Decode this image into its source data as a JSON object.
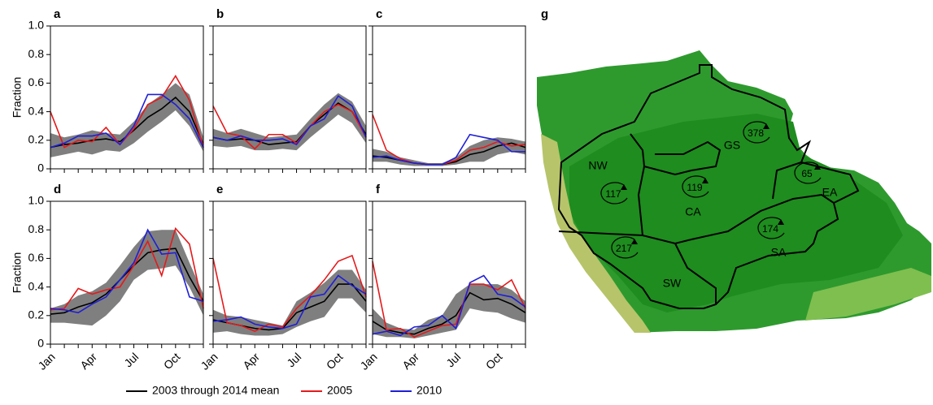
{
  "chart_data": [
    {
      "type": "line",
      "title": "a",
      "ylabel": "Fraction",
      "show_ytick_labels": true,
      "show_xtick_labels": false,
      "categories": [
        "Jan",
        null,
        null,
        "Apr",
        null,
        null,
        "Jul",
        null,
        null,
        "Oct",
        null,
        null
      ],
      "ylim": [
        0,
        1
      ],
      "yticks": [
        0,
        0.2,
        0.4,
        0.6,
        0.8,
        {
          "value": 1,
          "label": "1.0"
        }
      ],
      "band": {
        "color": "#7f7f7f",
        "low": [
          0.08,
          0.1,
          0.12,
          0.1,
          0.13,
          0.12,
          0.18,
          0.26,
          0.33,
          0.41,
          0.3,
          0.12
        ],
        "high": [
          0.25,
          0.22,
          0.24,
          0.27,
          0.25,
          0.24,
          0.33,
          0.45,
          0.52,
          0.6,
          0.52,
          0.22
        ]
      },
      "series": [
        {
          "values": [
            0.15,
            0.17,
            0.18,
            0.2,
            0.21,
            0.19,
            0.27,
            0.36,
            0.42,
            0.5,
            0.4,
            0.17
          ]
        },
        {
          "values": [
            0.4,
            0.15,
            0.2,
            0.19,
            0.29,
            0.17,
            0.28,
            0.45,
            0.5,
            0.65,
            0.48,
            0.15
          ]
        },
        {
          "values": [
            0.15,
            0.18,
            0.23,
            0.23,
            0.25,
            0.17,
            0.3,
            0.52,
            0.52,
            0.45,
            0.35,
            0.15
          ]
        }
      ]
    },
    {
      "type": "line",
      "title": "b",
      "show_ytick_labels": false,
      "show_xtick_labels": false,
      "categories": [
        "Jan",
        null,
        null,
        "Apr",
        null,
        null,
        "Jul",
        null,
        null,
        "Oct",
        null,
        null
      ],
      "ylim": [
        0,
        1
      ],
      "yticks": [
        0,
        0.2,
        0.4,
        0.6,
        0.8,
        1
      ],
      "band": {
        "color": "#7f7f7f",
        "low": [
          0.16,
          0.15,
          0.16,
          0.13,
          0.13,
          0.14,
          0.13,
          0.22,
          0.3,
          0.38,
          0.32,
          0.18
        ],
        "high": [
          0.28,
          0.25,
          0.28,
          0.25,
          0.22,
          0.23,
          0.24,
          0.35,
          0.45,
          0.53,
          0.47,
          0.3
        ]
      },
      "series": [
        {
          "values": [
            0.22,
            0.2,
            0.21,
            0.2,
            0.17,
            0.18,
            0.19,
            0.3,
            0.38,
            0.46,
            0.4,
            0.24
          ]
        },
        {
          "values": [
            0.44,
            0.25,
            0.23,
            0.14,
            0.24,
            0.24,
            0.18,
            0.3,
            0.4,
            0.45,
            0.4,
            0.22
          ]
        },
        {
          "values": [
            0.22,
            0.2,
            0.23,
            0.2,
            0.2,
            0.21,
            0.17,
            0.3,
            0.35,
            0.51,
            0.44,
            0.22
          ]
        }
      ]
    },
    {
      "type": "line",
      "title": "c",
      "show_ytick_labels": false,
      "show_xtick_labels": false,
      "categories": [
        "Jan",
        null,
        null,
        "Apr",
        null,
        null,
        "Jul",
        null,
        null,
        "Oct",
        null,
        null
      ],
      "ylim": [
        0,
        1
      ],
      "yticks": [
        0,
        0.2,
        0.4,
        0.6,
        0.8,
        1
      ],
      "band": {
        "color": "#7f7f7f",
        "low": [
          0.05,
          0.05,
          0.03,
          0.02,
          0.02,
          0.02,
          0.03,
          0.05,
          0.05,
          0.1,
          0.12,
          0.1
        ],
        "high": [
          0.14,
          0.12,
          0.08,
          0.06,
          0.04,
          0.04,
          0.08,
          0.16,
          0.2,
          0.22,
          0.21,
          0.19
        ]
      },
      "series": [
        {
          "values": [
            0.09,
            0.08,
            0.06,
            0.04,
            0.03,
            0.03,
            0.05,
            0.1,
            0.12,
            0.16,
            0.18,
            0.15
          ]
        },
        {
          "values": [
            0.38,
            0.13,
            0.07,
            0.04,
            0.03,
            0.03,
            0.06,
            0.13,
            0.15,
            0.19,
            0.16,
            0.17
          ]
        },
        {
          "values": [
            0.08,
            0.09,
            0.06,
            0.04,
            0.03,
            0.03,
            0.08,
            0.24,
            0.22,
            0.2,
            0.12,
            0.12
          ]
        }
      ]
    },
    {
      "type": "line",
      "title": "d",
      "ylabel": "Fraction",
      "show_ytick_labels": true,
      "show_xtick_labels": true,
      "categories": [
        "Jan",
        null,
        null,
        "Apr",
        null,
        null,
        "Jul",
        null,
        null,
        "Oct",
        null,
        null
      ],
      "ylim": [
        0,
        1
      ],
      "yticks": [
        0,
        0.2,
        0.4,
        0.6,
        0.8,
        {
          "value": 1,
          "label": "1.0"
        }
      ],
      "band": {
        "color": "#7f7f7f",
        "low": [
          0.15,
          0.15,
          0.14,
          0.13,
          0.2,
          0.3,
          0.45,
          0.52,
          0.53,
          0.55,
          0.4,
          0.2
        ],
        "high": [
          0.25,
          0.28,
          0.34,
          0.37,
          0.43,
          0.55,
          0.68,
          0.79,
          0.8,
          0.8,
          0.57,
          0.35
        ]
      },
      "series": [
        {
          "values": [
            0.21,
            0.22,
            0.26,
            0.29,
            0.35,
            0.45,
            0.55,
            0.64,
            0.66,
            0.67,
            0.47,
            0.3
          ]
        },
        {
          "values": [
            0.24,
            0.25,
            0.39,
            0.35,
            0.38,
            0.4,
            0.55,
            0.72,
            0.48,
            0.81,
            0.7,
            0.25
          ]
        },
        {
          "values": [
            0.25,
            0.24,
            0.22,
            0.28,
            0.33,
            0.45,
            0.57,
            0.8,
            0.63,
            0.64,
            0.33,
            0.3
          ]
        }
      ]
    },
    {
      "type": "line",
      "title": "e",
      "show_ytick_labels": false,
      "show_xtick_labels": true,
      "categories": [
        "Jan",
        null,
        null,
        "Apr",
        null,
        null,
        "Jul",
        null,
        null,
        "Oct",
        null,
        null
      ],
      "ylim": [
        0,
        1
      ],
      "yticks": [
        0,
        0.2,
        0.4,
        0.6,
        0.8,
        1
      ],
      "band": {
        "color": "#7f7f7f",
        "low": [
          0.08,
          0.09,
          0.07,
          0.06,
          0.06,
          0.07,
          0.12,
          0.16,
          0.19,
          0.32,
          0.32,
          0.22
        ],
        "high": [
          0.24,
          0.2,
          0.19,
          0.17,
          0.15,
          0.13,
          0.3,
          0.36,
          0.43,
          0.52,
          0.52,
          0.38
        ]
      },
      "series": [
        {
          "values": [
            0.17,
            0.15,
            0.13,
            0.11,
            0.1,
            0.11,
            0.22,
            0.26,
            0.3,
            0.42,
            0.42,
            0.3
          ]
        },
        {
          "values": [
            0.6,
            0.15,
            0.13,
            0.09,
            0.14,
            0.12,
            0.25,
            0.34,
            0.45,
            0.58,
            0.62,
            0.33
          ]
        },
        {
          "values": [
            0.16,
            0.17,
            0.19,
            0.14,
            0.12,
            0.11,
            0.14,
            0.33,
            0.35,
            0.48,
            0.41,
            0.35
          ]
        }
      ]
    },
    {
      "type": "line",
      "title": "f",
      "show_ytick_labels": false,
      "show_xtick_labels": true,
      "categories": [
        "Jan",
        null,
        null,
        "Apr",
        null,
        null,
        "Jul",
        null,
        null,
        "Oct",
        null,
        null
      ],
      "ylim": [
        0,
        1
      ],
      "yticks": [
        0,
        0.2,
        0.4,
        0.6,
        0.8,
        1
      ],
      "band": {
        "color": "#7f7f7f",
        "low": [
          0.07,
          0.05,
          0.05,
          0.04,
          0.06,
          0.08,
          0.1,
          0.25,
          0.23,
          0.22,
          0.18,
          0.15
        ],
        "high": [
          0.25,
          0.15,
          0.11,
          0.1,
          0.17,
          0.2,
          0.35,
          0.42,
          0.42,
          0.42,
          0.38,
          0.3
        ]
      },
      "series": [
        {
          "values": [
            0.16,
            0.1,
            0.08,
            0.07,
            0.11,
            0.14,
            0.2,
            0.36,
            0.31,
            0.32,
            0.28,
            0.22
          ]
        },
        {
          "values": [
            0.58,
            0.1,
            0.11,
            0.05,
            0.09,
            0.13,
            0.14,
            0.42,
            0.42,
            0.38,
            0.45,
            0.25
          ]
        },
        {
          "values": [
            0.07,
            0.09,
            0.06,
            0.12,
            0.13,
            0.2,
            0.11,
            0.43,
            0.48,
            0.35,
            0.33,
            0.26
          ]
        }
      ]
    }
  ],
  "legend": [
    {
      "name": "2003 through 2014 mean",
      "color": "#000000"
    },
    {
      "name": "2005",
      "color": "#e41a1c"
    },
    {
      "name": "2010",
      "color": "#1f1fd6"
    }
  ],
  "map": {
    "label": "g",
    "regions": [
      {
        "name": "GS",
        "value": 378
      },
      {
        "name": "NW",
        "value": 117
      },
      {
        "name": "CA",
        "value": 119
      },
      {
        "name": "EA",
        "value": 65
      },
      {
        "name": "SA",
        "value": 174
      },
      {
        "name": "SW",
        "value": 217
      }
    ]
  }
}
